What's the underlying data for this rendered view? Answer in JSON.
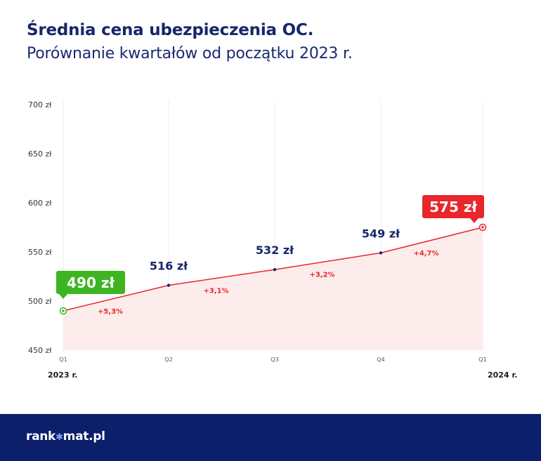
{
  "title": "Średnia cena ubezpieczenia OC.",
  "subtitle": "Porównanie kwartałów od początku 2023 r.",
  "chart_data": {
    "type": "line",
    "categories": [
      "Q1",
      "Q2",
      "Q3",
      "Q4",
      "Q1"
    ],
    "values": [
      490,
      516,
      532,
      549,
      575
    ],
    "value_labels": [
      "490 zł",
      "516 zł",
      "532 zł",
      "549 zł",
      "575 zł"
    ],
    "changes": [
      "+5,3%",
      "+3,1%",
      "+3,2%",
      "+4,7%"
    ],
    "y_ticks": [
      450,
      500,
      550,
      600,
      650,
      700
    ],
    "y_tick_labels": [
      "450 zł",
      "500 zł",
      "550 zł",
      "600 zł",
      "650 zł",
      "700 zł"
    ],
    "ylim": [
      450,
      700
    ],
    "xlabel": "",
    "ylabel": "",
    "grid": "vertical lines at each quarter",
    "colors": {
      "line": "#e8262b",
      "area": "#fdecec",
      "start_badge": "#3cb521",
      "end_badge": "#e8262b",
      "label": "#17266b",
      "change": "#e8262b"
    }
  },
  "year_start": "2023 r.",
  "year_end": "2024 r.",
  "footer": {
    "logo_left": "rank",
    "logo_star": "✱",
    "logo_right": "mat.pl"
  }
}
